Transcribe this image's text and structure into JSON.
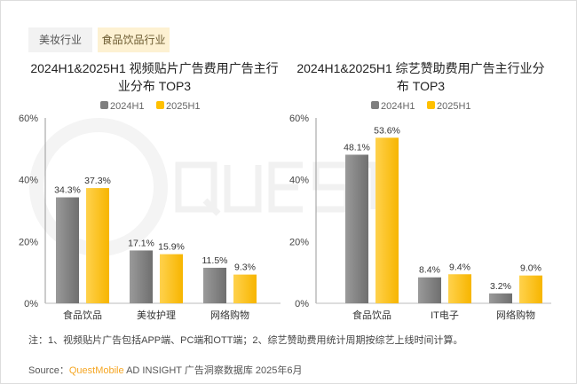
{
  "tabs": [
    {
      "label": "美妆行业"
    },
    {
      "label": "食品饮品行业"
    }
  ],
  "watermark": "QUESTMOBILE",
  "colors": {
    "2024H1": "#7f7f7f",
    "2025H1": "#ffc000"
  },
  "chart_data": [
    {
      "type": "bar",
      "title": "2024H1&2025H1 视频贴片广告费用广告主行业分布 TOP3",
      "categories": [
        "食品饮品",
        "美妆护理",
        "网络购物"
      ],
      "series": [
        {
          "name": "2024H1",
          "values": [
            34.3,
            17.1,
            11.5
          ]
        },
        {
          "name": "2025H1",
          "values": [
            37.3,
            15.9,
            9.3
          ]
        }
      ],
      "yticks": [
        "0%",
        "20%",
        "40%",
        "60%"
      ],
      "ylim": [
        0,
        60
      ],
      "legend": "top"
    },
    {
      "type": "bar",
      "title": "2024H1&2025H1 综艺赞助费用广告主行业分布 TOP3",
      "categories": [
        "食品饮品",
        "IT电子",
        "网络购物"
      ],
      "series": [
        {
          "name": "2024H1",
          "values": [
            48.1,
            8.4,
            3.2
          ]
        },
        {
          "name": "2025H1",
          "values": [
            53.6,
            9.4,
            9.0
          ]
        }
      ],
      "yticks": [
        "0%",
        "20%",
        "40%",
        "60%"
      ],
      "ylim": [
        0,
        60
      ],
      "legend": "top"
    }
  ],
  "note": "注：1、视频贴片广告包括APP端、PC端和OTT端；2、综艺赞助费用统计周期按综艺上线时间计算。",
  "source": {
    "label": "Source：",
    "brand": "QuestMobile",
    "rest": " AD INSIGHT 广告洞察数据库 2025年6月"
  }
}
